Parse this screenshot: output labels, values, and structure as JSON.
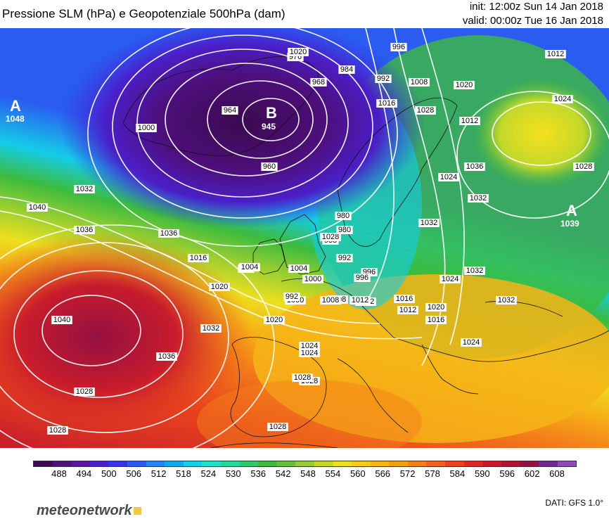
{
  "header": {
    "title": "Pressione SLM (hPa) e Geopotenziale 500hPa (dam)",
    "init": "init: 12:00z Sun 14 Jan 2018",
    "valid": "valid: 00:00z Tue 16 Jan 2018"
  },
  "centers": [
    {
      "letter": "A",
      "value": "1048"
    },
    {
      "letter": "B",
      "value": "945"
    },
    {
      "letter": "A",
      "value": "1039"
    }
  ],
  "isobar_labels": [
    "972",
    "976",
    "968",
    "984",
    "996",
    "1012",
    "964",
    "992",
    "1008",
    "1020",
    "1024",
    "1000",
    "1016",
    "960",
    "1012",
    "1028",
    "1024",
    "1032",
    "1036",
    "1036",
    "1032",
    "980",
    "988",
    "1040",
    "1004",
    "1024",
    "1028",
    "1016",
    "1020",
    "1040",
    "1036",
    "1032",
    "1008",
    "1012",
    "1020",
    "1024",
    "1028",
    "1032",
    "1028",
    "1028",
    "1028",
    "992",
    "996",
    "1000",
    "1008",
    "1012",
    "1016",
    "1020",
    "1024",
    "1024",
    "1028",
    "1032",
    "1036",
    "1032",
    "1028",
    "980",
    "988",
    "992",
    "1000",
    "1004",
    "996",
    "1012",
    "1016",
    "1020"
  ],
  "colorbar": {
    "colors": [
      "#3b0a4f",
      "#4d0f7a",
      "#5a14a3",
      "#4b1fc8",
      "#3535e6",
      "#2a5cf0",
      "#1f86f2",
      "#12a9f0",
      "#14cde8",
      "#1ee0c8",
      "#29d69a",
      "#2fc86a",
      "#3cbb3f",
      "#62c23a",
      "#93cd32",
      "#c3d82a",
      "#ecdf1f",
      "#f5cb1a",
      "#f6b417",
      "#f59b18",
      "#f47f1a",
      "#ef611c",
      "#e8431d",
      "#dc2a22",
      "#c81c2c",
      "#b01434",
      "#951040",
      "#6d2b8f",
      "#8d4ab8"
    ],
    "ticks": [
      "488",
      "494",
      "500",
      "506",
      "512",
      "518",
      "524",
      "530",
      "536",
      "542",
      "548",
      "554",
      "560",
      "566",
      "572",
      "578",
      "584",
      "590",
      "596",
      "602",
      "608"
    ]
  },
  "logo": "meteonetwork",
  "source": "DATI: GFS 1.0°"
}
